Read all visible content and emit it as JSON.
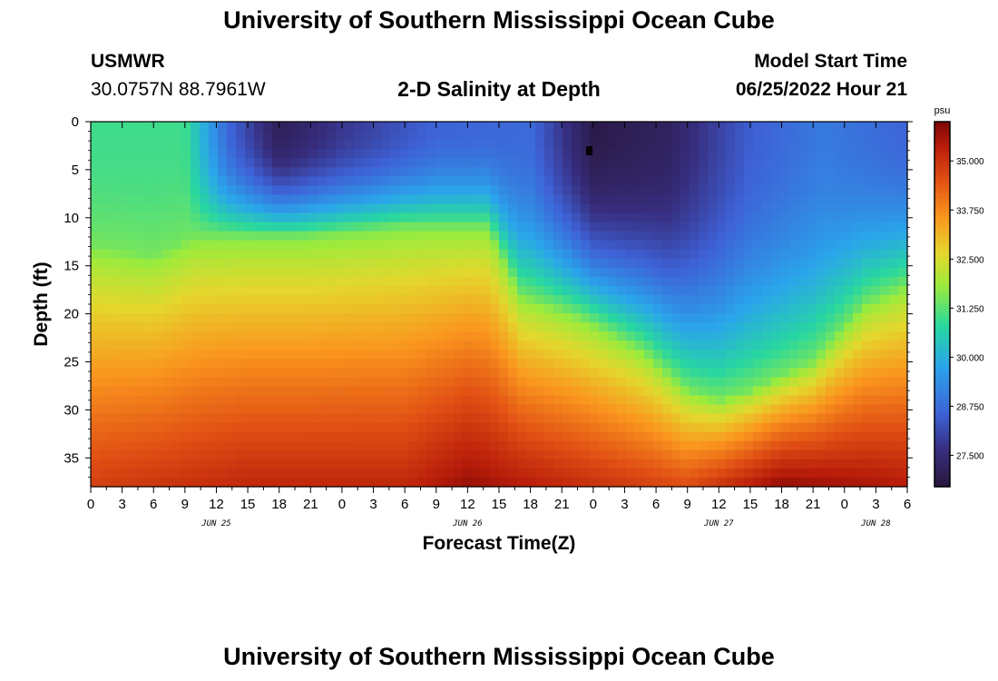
{
  "header": {
    "title": "University of Southern Mississippi Ocean Cube",
    "station_id": "USMWR",
    "station_coords": "30.0757N  88.7961W",
    "plot_title": "2-D Salinity at Depth",
    "model_start_label": "Model Start Time",
    "model_start_value": "06/25/2022 Hour 21"
  },
  "footer": {
    "title": "University of Southern Mississippi Ocean Cube"
  },
  "chart_data": {
    "type": "heatmap",
    "title": "2-D Salinity at Depth",
    "xlabel": "Forecast Time(Z)",
    "ylabel": "Depth (ft)",
    "x_tick_labels": [
      "0",
      "3",
      "6",
      "9",
      "12",
      "15",
      "18",
      "21",
      "0",
      "3",
      "6",
      "9",
      "12",
      "15",
      "18",
      "21",
      "0",
      "3",
      "6",
      "9",
      "12",
      "15",
      "18",
      "21",
      "0",
      "3",
      "6"
    ],
    "x_range_hours": [
      0,
      78
    ],
    "date_labels": [
      {
        "label": "JUN 25",
        "hour": 12
      },
      {
        "label": "JUN 26",
        "hour": 36
      },
      {
        "label": "JUN 27",
        "hour": 60
      },
      {
        "label": "JUN 28",
        "hour": 75
      }
    ],
    "y_tick_labels": [
      "0",
      "5",
      "10",
      "15",
      "20",
      "25",
      "30",
      "35"
    ],
    "y_range_ft": [
      0,
      38
    ],
    "colorbar": {
      "unit": "psu",
      "tick_labels": [
        "35.000",
        "33.750",
        "32.500",
        "31.250",
        "30.000",
        "28.750",
        "27.500"
      ],
      "range": [
        26.7,
        36.0
      ]
    },
    "surface_salinity_psu": [
      {
        "hour": 0,
        "value": 31.0
      },
      {
        "hour": 9,
        "value": 31.0
      },
      {
        "hour": 13,
        "value": 28.7
      },
      {
        "hour": 18,
        "value": 27.1
      },
      {
        "hour": 24,
        "value": 27.8
      },
      {
        "hour": 33,
        "value": 28.6
      },
      {
        "hour": 42,
        "value": 28.7
      },
      {
        "hour": 48,
        "value": 26.9
      },
      {
        "hour": 55,
        "value": 27.2
      },
      {
        "hour": 63,
        "value": 28.5
      },
      {
        "hour": 70,
        "value": 29.0
      },
      {
        "hour": 78,
        "value": 28.6
      }
    ],
    "bottom_salinity_psu": [
      {
        "hour": 0,
        "value": 34.8
      },
      {
        "hour": 15,
        "value": 35.2
      },
      {
        "hour": 30,
        "value": 35.2
      },
      {
        "hour": 36,
        "value": 35.7
      },
      {
        "hour": 45,
        "value": 35.2
      },
      {
        "hour": 57,
        "value": 34.6
      },
      {
        "hour": 66,
        "value": 35.8
      },
      {
        "hour": 78,
        "value": 35.4
      }
    ],
    "halocline_depth_ft": [
      {
        "hour": 0,
        "value": 13
      },
      {
        "hour": 6,
        "value": 14
      },
      {
        "hour": 10,
        "value": 12
      },
      {
        "hour": 14,
        "value": 12
      },
      {
        "hour": 20,
        "value": 12
      },
      {
        "hour": 30,
        "value": 11
      },
      {
        "hour": 38,
        "value": 11
      },
      {
        "hour": 41,
        "value": 18
      },
      {
        "hour": 46,
        "value": 20
      },
      {
        "hour": 48,
        "value": 21
      },
      {
        "hour": 53,
        "value": 24
      },
      {
        "hour": 57,
        "value": 28
      },
      {
        "hour": 60,
        "value": 29
      },
      {
        "hour": 63,
        "value": 28
      },
      {
        "hour": 69,
        "value": 25
      },
      {
        "hour": 74,
        "value": 19
      },
      {
        "hour": 78,
        "value": 17
      }
    ]
  }
}
